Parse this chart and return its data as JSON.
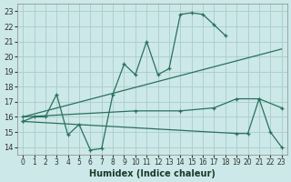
{
  "background_color": "#cce8e8",
  "grid_color": "#aacccc",
  "line_color": "#2a7060",
  "xlabel": "Humidex (Indice chaleur)",
  "xlim": [
    -0.5,
    23.5
  ],
  "ylim": [
    13.5,
    23.5
  ],
  "xticks": [
    0,
    1,
    2,
    3,
    4,
    5,
    6,
    7,
    8,
    9,
    10,
    11,
    12,
    13,
    14,
    15,
    16,
    17,
    18,
    19,
    20,
    21,
    22,
    23
  ],
  "yticks": [
    14,
    15,
    16,
    17,
    18,
    19,
    20,
    21,
    22,
    23
  ],
  "series1": {
    "x": [
      0,
      1,
      2,
      3,
      4,
      5,
      6,
      7,
      8,
      9,
      10,
      11,
      12,
      13,
      14,
      15,
      16,
      17,
      18
    ],
    "y": [
      15.7,
      16.0,
      16.0,
      17.5,
      14.8,
      15.5,
      13.8,
      13.9,
      17.5,
      19.5,
      18.8,
      21.0,
      18.8,
      19.2,
      22.8,
      22.9,
      22.8,
      22.1,
      21.4
    ]
  },
  "series2": {
    "x": [
      0,
      23
    ],
    "y": [
      16.0,
      20.5
    ]
  },
  "series3": {
    "x": [
      0,
      10,
      14,
      17,
      19,
      21,
      23
    ],
    "y": [
      16.0,
      16.4,
      16.4,
      16.6,
      17.2,
      17.2,
      16.6
    ]
  },
  "series4": {
    "x": [
      0,
      19,
      20,
      21,
      22,
      23
    ],
    "y": [
      15.7,
      14.9,
      14.9,
      17.2,
      15.0,
      14.0
    ]
  }
}
